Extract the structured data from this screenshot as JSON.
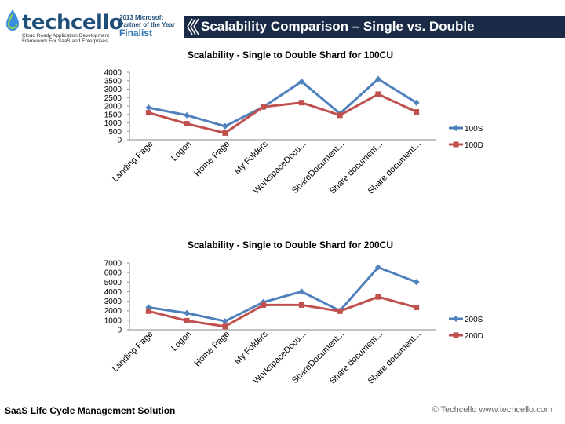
{
  "header": {
    "logo_text": "techcello",
    "tagline_line1": "Cloud Ready Application Development",
    "tagline_line2": "Framework For SaaS and Enterprises",
    "badge_line1": "2013 Microsoft",
    "badge_line2": "Partner of the Year",
    "badge_line3": "Finalist",
    "title": "Scalability Comparison – Single vs. Double",
    "brand_color": "#1f4e79",
    "title_bar_color": "#1a2b47"
  },
  "footer": {
    "left": "SaaS Life Cycle Management Solution",
    "right": "© Techcello www.techcello.com"
  },
  "chart_data": [
    {
      "type": "line",
      "title": "Scalability - Single to Double Shard for 100CU",
      "categories": [
        "Landing Page",
        "Logon",
        "Home Page",
        "My Folders",
        "WorkspaceDocu...",
        "ShareDocument...",
        "Share document...",
        "Share document..."
      ],
      "series": [
        {
          "name": "100S",
          "color": "#4f81bd",
          "marker": "diamond",
          "values": [
            1900,
            1450,
            800,
            1950,
            3450,
            1550,
            3600,
            2200
          ]
        },
        {
          "name": "100D",
          "color": "#c0504d",
          "marker": "square",
          "values": [
            1600,
            950,
            400,
            1950,
            2200,
            1450,
            2700,
            1650
          ]
        }
      ],
      "yticks": [
        "4000",
        "3500",
        "3000",
        "2500",
        "2000",
        "1500",
        "1000",
        "500",
        "0"
      ],
      "ylim": [
        0,
        4000
      ],
      "legend": "right"
    },
    {
      "type": "line",
      "title": "Scalability - Single to Double Shard for 200CU",
      "categories": [
        "Landing Page",
        "Logon",
        "Home Page",
        "My Folders",
        "WorkspaceDocu...",
        "ShareDocument...",
        "Share document...",
        "Share document..."
      ],
      "series": [
        {
          "name": "200S",
          "color": "#4f81bd",
          "marker": "diamond",
          "values": [
            2350,
            1750,
            900,
            2900,
            4000,
            2000,
            6550,
            5000
          ]
        },
        {
          "name": "200D",
          "color": "#c0504d",
          "marker": "square",
          "values": [
            1950,
            950,
            350,
            2600,
            2600,
            1950,
            3450,
            2350
          ]
        }
      ],
      "yticks": [
        "7000",
        "6000",
        "5000",
        "4000",
        "3000",
        "2000",
        "1000",
        "0"
      ],
      "ylim": [
        0,
        7000
      ],
      "legend": "right"
    }
  ]
}
